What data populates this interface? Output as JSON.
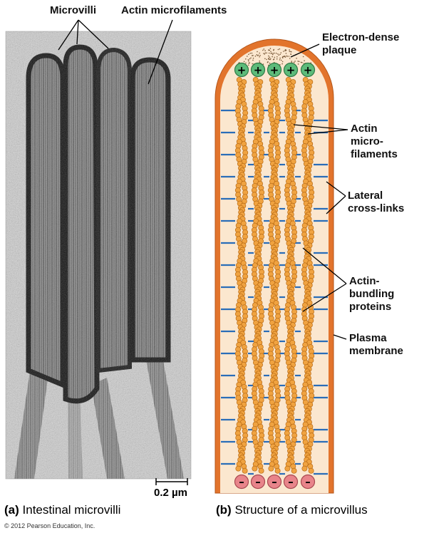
{
  "panel_a": {
    "label_microvilli": "Microvilli",
    "label_actin": "Actin microfilaments",
    "scale_bar": "0.2 µm",
    "caption_letter": "(a)",
    "caption_title": "Intestinal microvilli"
  },
  "panel_b": {
    "label_plaque_1": "Electron-dense",
    "label_plaque_2": "plaque",
    "label_actin_1": "Actin",
    "label_actin_2": "micro-",
    "label_actin_3": "filaments",
    "label_crosslinks_1": "Lateral",
    "label_crosslinks_2": "cross-links",
    "label_bundling_1": "Actin-",
    "label_bundling_2": "bundling",
    "label_bundling_3": "proteins",
    "label_membrane_1": "Plasma",
    "label_membrane_2": "membrane",
    "plus_sign": "+",
    "minus_sign": "–",
    "caption_letter": "(b)",
    "caption_title": "Structure of a microvillus"
  },
  "copyright": "© 2012 Pearson Education, Inc.",
  "colors": {
    "membrane": "#e2742c",
    "interior": "#fbe7cf",
    "actin_bead": "#f0a341",
    "actin_outline": "#b86a14",
    "crosslink": "#2a6db8",
    "plus_cap": "#5dbb7a",
    "minus_cap": "#e8848a",
    "micrograph_bg": "#c9c9c9"
  }
}
